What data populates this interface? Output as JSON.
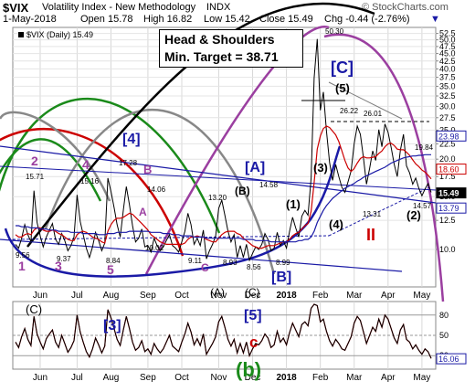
{
  "header": {
    "symbol": "$VIX",
    "name": "Volatility Index - New Methodology",
    "exchange": "INDX",
    "date": "1-May-2018",
    "open": "Open 15.78",
    "high": "High 16.82",
    "low": "Low 15.42",
    "close": "Close 15.49",
    "chg": "Chg -0.44 (-2.76%)",
    "chg_arrow": "▼",
    "legend": "$VIX (Daily) 15.49",
    "copyright": "© StockCharts.com"
  },
  "callout": {
    "line1": "Head & Shoulders",
    "line2": "Min. Target = 38.71"
  },
  "chart_data": [
    {
      "type": "line",
      "title": "$VIX (Daily) 15.49",
      "ylim": [
        7.5,
        55
      ],
      "log_scale": true,
      "y_ticks": [
        "52.5",
        "50.0",
        "47.5",
        "45.0",
        "42.5",
        "40.0",
        "37.5",
        "35.0",
        "32.5",
        "30.0",
        "27.5",
        "25.0",
        "22.5",
        "20.0",
        "17.5",
        "15.0",
        "12.5",
        "10.0"
      ],
      "x_ticks": [
        "Jun",
        "Jul",
        "Aug",
        "Sep",
        "Oct",
        "Nov",
        "Dec",
        "2018",
        "Feb",
        "Mar",
        "Apr",
        "May"
      ],
      "last_value": "15.49",
      "right_tags": [
        "23.98",
        "18.60",
        "15.49",
        "13.79"
      ],
      "series": [
        {
          "name": "$VIX",
          "color": "#000000",
          "values": [
            10.4,
            10.1,
            10.9,
            12.1,
            11.2,
            10.6,
            15.7,
            12.3,
            11.1,
            10.2,
            11.0,
            11.6,
            12.2,
            10.8,
            10.4,
            11.3,
            10.7,
            9.9,
            10.3,
            11.0,
            15.2,
            12.4,
            11.2,
            10.1,
            9.4,
            10.2,
            11.4,
            10.7,
            9.9,
            10.5,
            17.3,
            15.6,
            13.8,
            12.1,
            11.0,
            13.5,
            16.2,
            14.1,
            12.0,
            10.6,
            10.9,
            11.7,
            10.2,
            10.3,
            9.8,
            10.9,
            10.3,
            9.9,
            10.2,
            10.7,
            11.2,
            10.3,
            10.1,
            9.8,
            10.6,
            11.5,
            13.2,
            12.1,
            10.4,
            10.9,
            10.3,
            11.6,
            9.3,
            9.9,
            10.4,
            11.1,
            13.7,
            14.6,
            13.0,
            11.5,
            10.6,
            11.2,
            9.4,
            10.3,
            9.4,
            10.4,
            9.2,
            9.7,
            10.2,
            10.0,
            10.4,
            11.3,
            10.8,
            9.9,
            10.1,
            11.4,
            10.3,
            10.7,
            10.1,
            11.5,
            12.8,
            11.8,
            11.0,
            12.9,
            13.5,
            13.0,
            17.3,
            37.3,
            50.3,
            29.1,
            33.5,
            24.8,
            19.5,
            17.0,
            19.2,
            17.5,
            16.1,
            15.5,
            16.8,
            18.3,
            22.5,
            25.8,
            24.2,
            20.2,
            16.5,
            18.6,
            21.3,
            19.8,
            25.1,
            22.0,
            26.2,
            24.6,
            21.9,
            19.2,
            17.5,
            21.4,
            24.2,
            19.0,
            18.0,
            16.5,
            17.3,
            16.0,
            15.1,
            15.9,
            16.6,
            15.5
          ]
        },
        {
          "name": "moving-average-short",
          "color": "#cc0000",
          "values": [
            11.2,
            11.0,
            11.0,
            11.2,
            11.3,
            11.2,
            11.6,
            11.8,
            11.8,
            11.6,
            11.5,
            11.5,
            11.6,
            11.5,
            11.3,
            11.2,
            11.0,
            10.8,
            10.7,
            10.7,
            11.2,
            11.4,
            11.5,
            11.4,
            11.2,
            11.0,
            10.9,
            10.8,
            10.6,
            10.5,
            11.5,
            12.1,
            12.5,
            12.7,
            12.7,
            12.8,
            13.0,
            13.2,
            13.1,
            12.8,
            12.5,
            12.2,
            11.9,
            11.6,
            11.2,
            11.0,
            10.8,
            10.6,
            10.5,
            10.4,
            10.4,
            10.4,
            10.4,
            10.4,
            10.4,
            10.5,
            10.8,
            11.0,
            11.0,
            11.1,
            11.0,
            11.0,
            10.8,
            10.7,
            10.6,
            10.6,
            10.9,
            11.2,
            11.4,
            11.5,
            11.5,
            11.5,
            11.3,
            11.2,
            10.9,
            10.7,
            10.5,
            10.3,
            10.2,
            10.1,
            10.1,
            10.2,
            10.3,
            10.3,
            10.3,
            10.4,
            10.5,
            10.6,
            10.6,
            10.8,
            11.1,
            11.3,
            11.4,
            11.7,
            12.0,
            12.2,
            13.4,
            16.7,
            21.6,
            23.9,
            25.3,
            25.8,
            25.5,
            24.8,
            24.1,
            22.9,
            21.3,
            19.8,
            18.7,
            18.2,
            18.6,
            19.4,
            20.1,
            20.4,
            20.2,
            20.2,
            20.3,
            20.4,
            20.9,
            21.3,
            22.0,
            22.5,
            22.6,
            22.2,
            21.6,
            21.5,
            21.5,
            21.1,
            20.6,
            19.9,
            19.3,
            18.9,
            18.4,
            18.1,
            17.7,
            17.2
          ]
        },
        {
          "name": "moving-average-long",
          "color": "#1a1aa6",
          "values": [
            12.0,
            12.0,
            11.9,
            11.9,
            11.9,
            11.8,
            11.8,
            11.8,
            11.7,
            11.7,
            11.7,
            11.6,
            11.6,
            11.6,
            11.5,
            11.5,
            11.5,
            11.5,
            11.4,
            11.4,
            11.4,
            11.4,
            11.3,
            11.3,
            11.3,
            11.3,
            11.3,
            11.2,
            11.2,
            11.2,
            11.3,
            11.3,
            11.3,
            11.4,
            11.4,
            11.4,
            11.4,
            11.5,
            11.5,
            11.5,
            11.5,
            11.5,
            11.5,
            11.5,
            11.4,
            11.4,
            11.4,
            11.4,
            11.3,
            11.3,
            11.3,
            11.2,
            11.2,
            11.2,
            11.1,
            11.1,
            11.1,
            11.1,
            11.0,
            11.0,
            11.0,
            11.0,
            10.9,
            10.9,
            10.9,
            10.9,
            10.9,
            10.9,
            10.9,
            10.9,
            10.9,
            10.9,
            10.9,
            10.9,
            10.8,
            10.8,
            10.8,
            10.8,
            10.7,
            10.7,
            10.7,
            10.7,
            10.7,
            10.6,
            10.6,
            10.6,
            10.6,
            10.6,
            10.6,
            10.6,
            10.6,
            10.6,
            10.7,
            10.7,
            10.8,
            10.8,
            11.0,
            11.5,
            12.3,
            12.9,
            13.5,
            14.0,
            14.4,
            14.8,
            15.1,
            15.4,
            15.7,
            16.0,
            16.2,
            16.4,
            16.6,
            16.9,
            17.1,
            17.4,
            17.6,
            17.8,
            18.0,
            18.2,
            18.4,
            18.6,
            18.8,
            19.1,
            19.4,
            19.6,
            19.8,
            20.0,
            20.2,
            20.3,
            20.4,
            20.5,
            20.5,
            20.6,
            20.6,
            20.7,
            20.7,
            20.7
          ]
        }
      ],
      "annotations": [
        {
          "text": "[C]",
          "color": "#1a1aa6"
        },
        {
          "text": "[4]",
          "color": "#1a1aa6"
        },
        {
          "text": "[A]",
          "color": "#1a1aa6"
        },
        {
          "text": "[B]",
          "color": "#1a1aa6"
        },
        {
          "text": "(B)",
          "color": "#000000"
        },
        {
          "text": "(1)",
          "color": "#000000"
        },
        {
          "text": "(3)",
          "color": "#000000"
        },
        {
          "text": "(4)",
          "color": "#000000"
        },
        {
          "text": "(2)",
          "color": "#000000"
        },
        {
          "text": "(5)",
          "color": "#000000"
        },
        {
          "text": "II",
          "color": "#cc0000"
        },
        {
          "text": "B",
          "color": "#9b3fa0"
        },
        {
          "text": "A",
          "color": "#9b3fa0"
        },
        {
          "text": "C",
          "color": "#9b3fa0"
        },
        {
          "text": "1",
          "color": "#9b3fa0"
        },
        {
          "text": "2",
          "color": "#9b3fa0"
        },
        {
          "text": "3",
          "color": "#9b3fa0"
        },
        {
          "text": "4",
          "color": "#9b3fa0"
        },
        {
          "text": "5",
          "color": "#9b3fa0"
        },
        {
          "text": "15.71",
          "color": "#000000"
        },
        {
          "text": "15.16",
          "color": "#000000"
        },
        {
          "text": "17.28",
          "color": "#000000"
        },
        {
          "text": "14.06",
          "color": "#000000"
        },
        {
          "text": "13.20",
          "color": "#000000"
        },
        {
          "text": "14.58",
          "color": "#000000"
        },
        {
          "text": "50.30",
          "color": "#000000"
        },
        {
          "text": "26.22",
          "color": "#000000"
        },
        {
          "text": "26.01",
          "color": "#000000"
        },
        {
          "text": "19.84",
          "color": "#000000"
        },
        {
          "text": "14.57",
          "color": "#000000"
        },
        {
          "text": "13.31",
          "color": "#000000"
        },
        {
          "text": "10.02",
          "color": "#000000"
        },
        {
          "text": "9.56",
          "color": "#000000"
        },
        {
          "text": "9.37",
          "color": "#000000"
        },
        {
          "text": "8.84",
          "color": "#000000"
        },
        {
          "text": "9.11",
          "color": "#000000"
        },
        {
          "text": "8.93",
          "color": "#000000"
        },
        {
          "text": "8.56",
          "color": "#000000"
        },
        {
          "text": "8.99",
          "color": "#000000"
        }
      ]
    },
    {
      "type": "line",
      "title": "",
      "ylim": [
        0,
        100
      ],
      "y_ticks": [
        "80",
        "50",
        "20"
      ],
      "last_value": "16.06",
      "series": [
        {
          "name": "oscillator",
          "color": "#000000",
          "values": [
            40,
            32,
            48,
            60,
            44,
            35,
            78,
            52,
            40,
            30,
            45,
            52,
            58,
            40,
            32,
            50,
            38,
            25,
            32,
            42,
            80,
            55,
            40,
            26,
            18,
            30,
            46,
            36,
            24,
            34,
            88,
            76,
            60,
            44,
            35,
            58,
            78,
            60,
            40,
            28,
            32,
            42,
            26,
            30,
            22,
            38,
            30,
            24,
            30,
            40,
            50,
            34,
            30,
            26,
            40,
            52,
            68,
            55,
            36,
            45,
            35,
            52,
            22,
            30,
            38,
            48,
            70,
            78,
            62,
            44,
            34,
            44,
            24,
            38,
            24,
            40,
            20,
            30,
            38,
            36,
            42,
            52,
            46,
            32,
            36,
            56,
            40,
            46,
            36,
            54,
            68,
            58,
            48,
            66,
            70,
            64,
            90,
            96,
            94,
            70,
            74,
            56,
            42,
            34,
            44,
            38,
            30,
            28,
            38,
            48,
            68,
            78,
            72,
            55,
            38,
            50,
            62,
            56,
            74,
            62,
            80,
            74,
            60,
            46,
            38,
            58,
            66,
            44,
            40,
            30,
            36,
            28,
            22,
            30,
            26,
            16
          ]
        }
      ],
      "annotations": [
        {
          "text": "(C)",
          "color": "#000000"
        },
        {
          "text": "[3]",
          "color": "#1a1aa6"
        },
        {
          "text": "(A)",
          "color": "#000000"
        },
        {
          "text": "(C)",
          "color": "#000000"
        },
        {
          "text": "[5]",
          "color": "#1a1aa6"
        },
        {
          "text": "c",
          "color": "#cc0000"
        },
        {
          "text": "(b)",
          "color": "#1a8a1a"
        }
      ]
    }
  ]
}
